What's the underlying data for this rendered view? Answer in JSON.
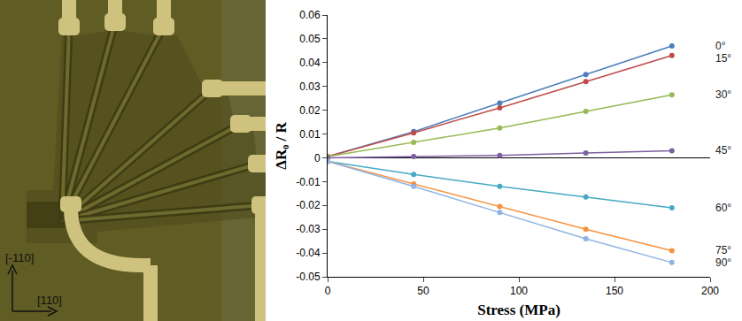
{
  "chart_data": {
    "type": "line",
    "x_label": "Stress (MPa)",
    "y_label": "ΔR₀ / R",
    "x": [
      0,
      45,
      90,
      135,
      180
    ],
    "xlim": [
      0,
      200
    ],
    "xticks": [
      0,
      50,
      100,
      150,
      200
    ],
    "ylim": [
      -0.05,
      0.06
    ],
    "yticks": [
      -0.05,
      -0.04,
      -0.03,
      -0.02,
      -0.01,
      0,
      0.01,
      0.02,
      0.03,
      0.04,
      0.05,
      0.06
    ],
    "grid": false,
    "marker": "circle",
    "series": [
      {
        "name": "0°",
        "color": "#4a7ebb",
        "values": [
          0.0005,
          0.011,
          0.023,
          0.035,
          0.047
        ]
      },
      {
        "name": "15°",
        "color": "#be4b48",
        "values": [
          0.0005,
          0.0105,
          0.021,
          0.032,
          0.043
        ]
      },
      {
        "name": "30°",
        "color": "#98b954",
        "values": [
          0.0005,
          0.0065,
          0.0125,
          0.0195,
          0.0265
        ]
      },
      {
        "name": "45°",
        "color": "#7d60a0",
        "values": [
          0,
          0.0005,
          0.001,
          0.002,
          0.003
        ]
      },
      {
        "name": "60°",
        "color": "#46aac5",
        "values": [
          -0.0015,
          -0.007,
          -0.012,
          -0.0165,
          -0.021
        ]
      },
      {
        "name": "75°",
        "color": "#f69240",
        "values": [
          -0.0015,
          -0.011,
          -0.0205,
          -0.03,
          -0.039
        ]
      },
      {
        "name": "90°",
        "color": "#8eb4e3",
        "values": [
          -0.0015,
          -0.012,
          -0.023,
          -0.034,
          -0.044
        ]
      }
    ]
  },
  "micrograph": {
    "direction_labels": {
      "vertical": "[-110]",
      "horizontal": "[110]"
    }
  }
}
